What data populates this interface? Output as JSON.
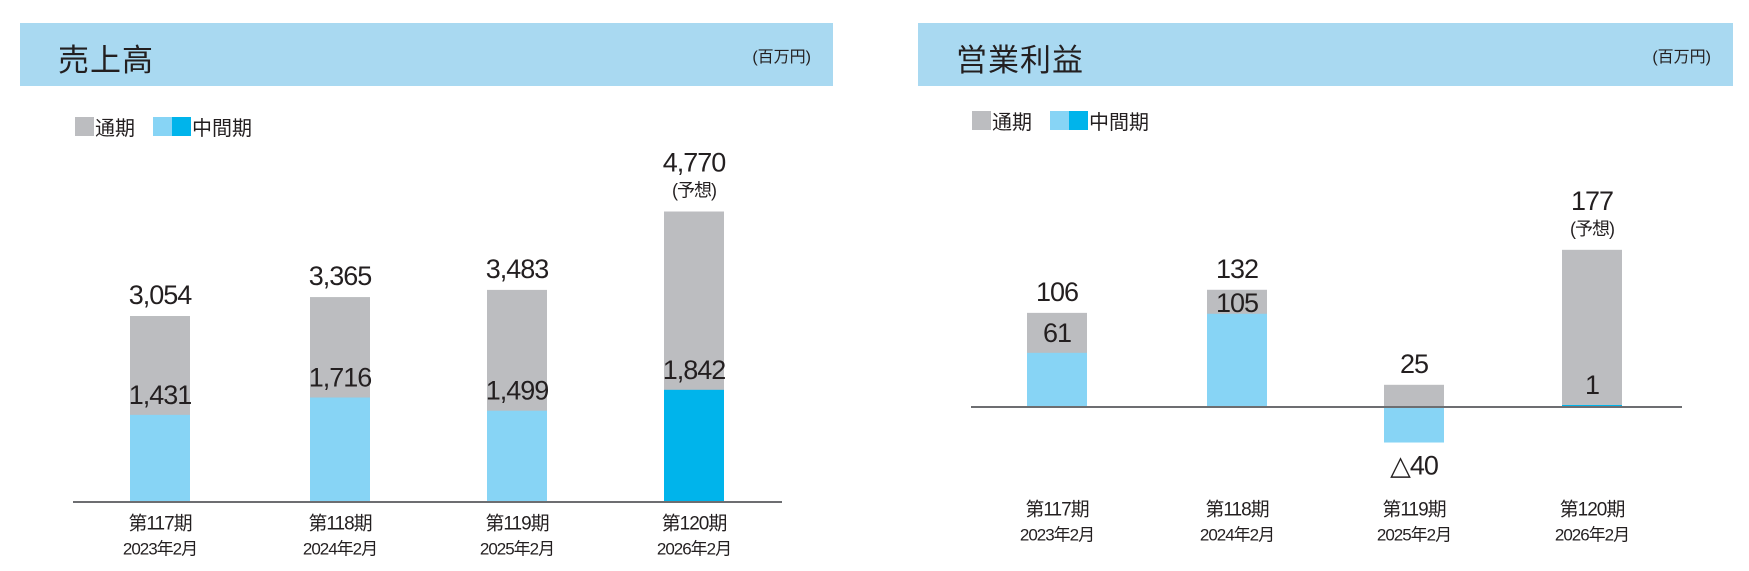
{
  "colors": {
    "header": "#a9d9f1",
    "full_year": "#bcbdc0",
    "interim": "#87d4f5",
    "interim_current": "#00b4eb",
    "axis": "#6d6e71",
    "text": "#231f20"
  },
  "legend": {
    "full_year": "通期",
    "interim": "中間期"
  },
  "chart_data": [
    {
      "type": "bar",
      "title": "売上高",
      "unit": "(百万円)",
      "categories": [
        "第117期",
        "第118期",
        "第119期",
        "第120期"
      ],
      "category_sublabels": [
        "2023年2月",
        "2024年2月",
        "2025年2月",
        "2026年2月"
      ],
      "series": [
        {
          "name": "通期",
          "values": [
            3054,
            3365,
            3483,
            4770
          ],
          "labels": [
            "3,054",
            "3,365",
            "3,483",
            "4,770"
          ]
        },
        {
          "name": "中間期",
          "values": [
            1431,
            1716,
            1499,
            1842
          ],
          "labels": [
            "1,431",
            "1,716",
            "1,499",
            "1,842"
          ]
        }
      ],
      "forecast_note": [
        "",
        "",
        "",
        "(予想)"
      ],
      "overlaid": true
    },
    {
      "type": "bar",
      "title": "営業利益",
      "unit": "(百万円)",
      "categories": [
        "第117期",
        "第118期",
        "第119期",
        "第120期"
      ],
      "category_sublabels": [
        "2023年2月",
        "2024年2月",
        "2025年2月",
        "2026年2月"
      ],
      "series": [
        {
          "name": "通期",
          "values": [
            106,
            132,
            25,
            177
          ],
          "labels": [
            "106",
            "132",
            "25",
            "177"
          ]
        },
        {
          "name": "中間期",
          "values": [
            61,
            105,
            -40,
            1
          ],
          "labels": [
            "61",
            "105",
            "△40",
            "1"
          ]
        }
      ],
      "forecast_note": [
        "",
        "",
        "",
        "(予想)"
      ],
      "overlaid": true
    }
  ]
}
